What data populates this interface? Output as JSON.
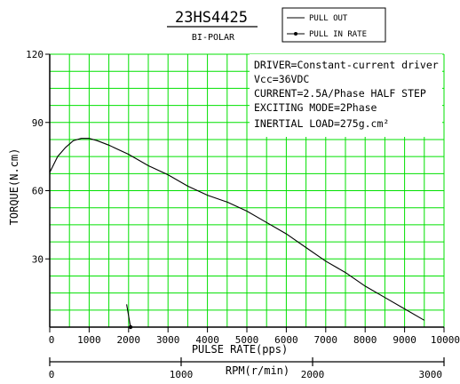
{
  "chart_data": {
    "type": "line",
    "title": "23HS4425",
    "subtitle": "BI-POLAR",
    "ylabel": "TORQUE(N.cm)",
    "xlabel": "PULSE RATE(pps)",
    "secondary_xlabel": "RPM(r/min)",
    "xlim": [
      0,
      10000
    ],
    "ylim": [
      0,
      120
    ],
    "grid": true,
    "grid_color": "#00e000",
    "x_ticks": [
      "0",
      "1000",
      "2000",
      "3000",
      "4000",
      "5000",
      "6000",
      "7000",
      "8000",
      "9000",
      "10000"
    ],
    "y_ticks": [
      "30",
      "60",
      "90",
      "120"
    ],
    "rpm_ticks": [
      {
        "label": "0",
        "pps": 0
      },
      {
        "label": "1000",
        "pps": 3333
      },
      {
        "label": "2000",
        "pps": 6667
      },
      {
        "label": "3000",
        "pps": 10000
      }
    ],
    "annotations": [
      "DRIVER=Constant-current driver",
      "Vcc=36VDC",
      "CURRENT=2.5A/Phase HALF STEP",
      "EXCITING MODE=2Phase",
      "INERTIAL LOAD=275g.cm²"
    ],
    "series": [
      {
        "name": "PULL OUT",
        "marker": "none",
        "x": [
          0,
          200,
          400,
          600,
          800,
          1000,
          1200,
          1500,
          2000,
          2500,
          3000,
          3500,
          4000,
          4500,
          5000,
          5500,
          6000,
          6500,
          7000,
          7500,
          8000,
          8500,
          9000,
          9500
        ],
        "y": [
          68,
          75,
          79,
          82,
          83,
          83,
          82,
          80,
          76,
          71,
          67,
          62,
          58,
          55,
          51,
          46,
          41,
          35,
          29,
          24,
          18,
          13,
          8,
          3
        ]
      },
      {
        "name": "PULL IN RATE",
        "marker": "dot",
        "x": [
          1950,
          2000,
          2050
        ],
        "y": [
          10,
          5,
          0
        ]
      }
    ],
    "legend_position": "top-right"
  }
}
